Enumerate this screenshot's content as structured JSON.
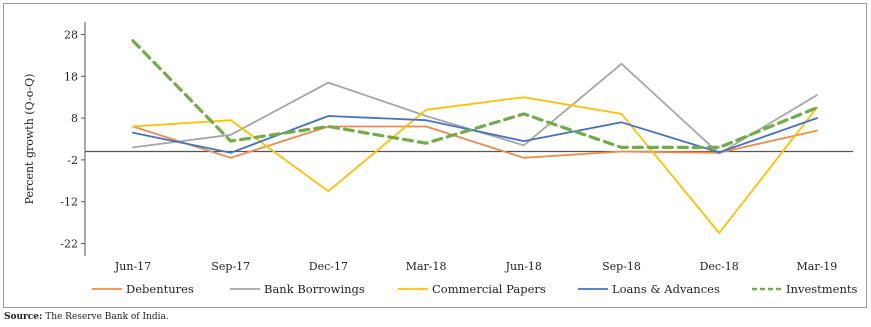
{
  "chart_data": {
    "type": "line",
    "title": "",
    "xlabel": "",
    "ylabel": "Percent growth (Q-o-Q)",
    "categories": [
      "Jun-17",
      "Sep-17",
      "Dec-17",
      "Mar-18",
      "Jun-18",
      "Sep-18",
      "Dec-18",
      "Mar-19"
    ],
    "yticks": [
      28,
      18,
      8,
      -2,
      -12,
      -22
    ],
    "ylim": [
      -25,
      31
    ],
    "grid": false,
    "legend_position": "bottom",
    "series": [
      {
        "name": "Debentures",
        "color": "#f08a4b",
        "dash": false,
        "values": [
          6,
          -1.5,
          6,
          6,
          -1.5,
          0,
          -0.3,
          5
        ]
      },
      {
        "name": "Bank Borrowings",
        "color": "#a6a6a6",
        "dash": false,
        "values": [
          1,
          4,
          16.5,
          8.5,
          1.5,
          21,
          -0.5,
          13.5
        ]
      },
      {
        "name": "Commercial Papers",
        "color": "#ffc000",
        "dash": false,
        "values": [
          6,
          7.5,
          -9.5,
          10,
          13,
          9,
          -19.5,
          10.5
        ]
      },
      {
        "name": "Loans & Advances",
        "color": "#4472c4",
        "dash": false,
        "values": [
          4.5,
          -0.3,
          8.5,
          7.5,
          2.5,
          7,
          -0.2,
          8
        ]
      },
      {
        "name": "Investments",
        "color": "#70ad47",
        "dash": true,
        "values": [
          26.5,
          2.5,
          6,
          2,
          9,
          1,
          1,
          10.5
        ]
      }
    ]
  },
  "source": {
    "label": "Source:",
    "text": " The Reserve Bank of India."
  }
}
